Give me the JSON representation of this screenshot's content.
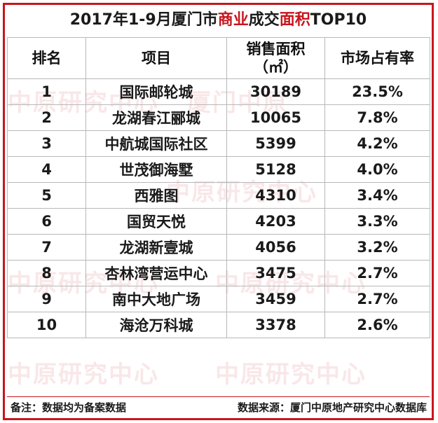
{
  "title": {
    "part1": "2017年1-9月厦门市",
    "part2": "商业",
    "part3": "成交",
    "part4": "面积",
    "part5": "TOP10"
  },
  "headers": {
    "rank": "排名",
    "project": "项目",
    "area_line1": "销售面积",
    "area_line2": "（㎡）",
    "share": "市场占有率"
  },
  "rows": [
    {
      "rank": "1",
      "project": "国际邮轮城",
      "area": "30189",
      "share": "23.5%"
    },
    {
      "rank": "2",
      "project": "龙湖春江郦城",
      "area": "10065",
      "share": "7.8%"
    },
    {
      "rank": "3",
      "project": "中航城国际社区",
      "area": "5399",
      "share": "4.2%"
    },
    {
      "rank": "4",
      "project": "世茂御海墅",
      "area": "5128",
      "share": "4.0%"
    },
    {
      "rank": "5",
      "project": "西雅图",
      "area": "4310",
      "share": "3.4%"
    },
    {
      "rank": "6",
      "project": "国贸天悦",
      "area": "4203",
      "share": "3.3%"
    },
    {
      "rank": "7",
      "project": "龙湖新壹城",
      "area": "4056",
      "share": "3.2%"
    },
    {
      "rank": "8",
      "project": "杏林湾营运中心",
      "area": "3475",
      "share": "2.7%"
    },
    {
      "rank": "9",
      "project": "南中大地广场",
      "area": "3459",
      "share": "2.7%"
    },
    {
      "rank": "10",
      "project": "海沧万科城",
      "area": "3378",
      "share": "2.6%"
    }
  ],
  "footer": {
    "note": "备注：数据均为备案数据",
    "source": "数据来源：厦门中原地产研究中心数据库"
  },
  "watermark": {
    "text1": "中原研究中心",
    "text2": "厦门中原"
  }
}
